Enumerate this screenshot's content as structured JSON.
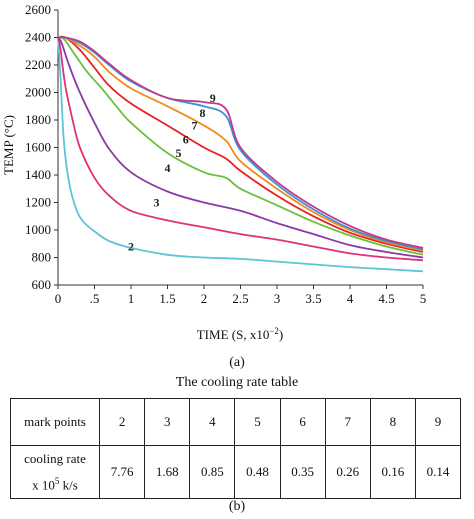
{
  "chart_data": {
    "type": "line",
    "ylabel": "TEMP (°C)",
    "xlabel": "TIME  (S, x10",
    "xlabel_exp": "−2",
    "xlabel_close": ")",
    "xlim": [
      0,
      5
    ],
    "ylim": [
      600,
      2600
    ],
    "x_ticks": [
      "0",
      ".5",
      "1",
      "1.5",
      "2",
      "2.5",
      "3",
      "3.5",
      "4",
      "4.5",
      "5"
    ],
    "x_tick_values": [
      0,
      0.5,
      1,
      1.5,
      2,
      2.5,
      3,
      3.5,
      4,
      4.5,
      5
    ],
    "y_ticks": [
      600,
      800,
      1000,
      1200,
      1400,
      1600,
      1800,
      2000,
      2200,
      2400,
      2600
    ],
    "grid": false,
    "series": [
      {
        "name": "2",
        "color": "#5bc4d6",
        "label_at": [
          1.0,
          880
        ],
        "points": [
          [
            0,
            2400
          ],
          [
            0.03,
            2150
          ],
          [
            0.08,
            1650
          ],
          [
            0.15,
            1350
          ],
          [
            0.25,
            1150
          ],
          [
            0.35,
            1060
          ],
          [
            0.5,
            990
          ],
          [
            0.7,
            920
          ],
          [
            1.0,
            870
          ],
          [
            1.5,
            820
          ],
          [
            2.0,
            800
          ],
          [
            2.5,
            790
          ],
          [
            3.0,
            770
          ],
          [
            3.5,
            750
          ],
          [
            4.0,
            730
          ],
          [
            4.5,
            715
          ],
          [
            5.0,
            700
          ]
        ]
      },
      {
        "name": "3",
        "color": "#e0307a",
        "label_at": [
          1.35,
          1200
        ],
        "points": [
          [
            0,
            2400
          ],
          [
            0.03,
            2330
          ],
          [
            0.1,
            2050
          ],
          [
            0.2,
            1800
          ],
          [
            0.3,
            1600
          ],
          [
            0.5,
            1380
          ],
          [
            0.7,
            1250
          ],
          [
            1.0,
            1140
          ],
          [
            1.5,
            1070
          ],
          [
            2.0,
            1020
          ],
          [
            2.5,
            970
          ],
          [
            3.0,
            930
          ],
          [
            3.5,
            880
          ],
          [
            4.0,
            830
          ],
          [
            4.5,
            800
          ],
          [
            5.0,
            780
          ]
        ]
      },
      {
        "name": "4",
        "color": "#8a3aa8",
        "label_at": [
          1.5,
          1450
        ],
        "points": [
          [
            0,
            2400
          ],
          [
            0.05,
            2360
          ],
          [
            0.15,
            2200
          ],
          [
            0.3,
            2000
          ],
          [
            0.5,
            1780
          ],
          [
            0.7,
            1590
          ],
          [
            1.0,
            1420
          ],
          [
            1.5,
            1280
          ],
          [
            2.0,
            1200
          ],
          [
            2.5,
            1140
          ],
          [
            3.0,
            1050
          ],
          [
            3.5,
            970
          ],
          [
            4.0,
            890
          ],
          [
            4.5,
            840
          ],
          [
            5.0,
            800
          ]
        ]
      },
      {
        "name": "5",
        "color": "#6cbf3a",
        "label_at": [
          1.65,
          1560
        ],
        "points": [
          [
            0,
            2400
          ],
          [
            0.08,
            2390
          ],
          [
            0.2,
            2300
          ],
          [
            0.4,
            2150
          ],
          [
            0.6,
            2030
          ],
          [
            0.8,
            1900
          ],
          [
            1.0,
            1780
          ],
          [
            1.5,
            1560
          ],
          [
            2.0,
            1420
          ],
          [
            2.3,
            1380
          ],
          [
            2.5,
            1300
          ],
          [
            3.0,
            1180
          ],
          [
            3.5,
            1060
          ],
          [
            4.0,
            960
          ],
          [
            4.5,
            880
          ],
          [
            5.0,
            820
          ]
        ]
      },
      {
        "name": "6",
        "color": "#e82020",
        "label_at": [
          1.75,
          1660
        ],
        "points": [
          [
            0,
            2400
          ],
          [
            0.1,
            2400
          ],
          [
            0.3,
            2310
          ],
          [
            0.5,
            2180
          ],
          [
            0.7,
            2050
          ],
          [
            1.0,
            1920
          ],
          [
            1.5,
            1760
          ],
          [
            2.0,
            1600
          ],
          [
            2.3,
            1520
          ],
          [
            2.5,
            1430
          ],
          [
            3.0,
            1250
          ],
          [
            3.5,
            1100
          ],
          [
            4.0,
            980
          ],
          [
            4.5,
            900
          ],
          [
            5.0,
            840
          ]
        ]
      },
      {
        "name": "7",
        "color": "#f08a1e",
        "label_at": [
          1.87,
          1760
        ],
        "points": [
          [
            0,
            2400
          ],
          [
            0.1,
            2400
          ],
          [
            0.3,
            2340
          ],
          [
            0.5,
            2260
          ],
          [
            0.7,
            2150
          ],
          [
            1.0,
            2030
          ],
          [
            1.5,
            1900
          ],
          [
            2.0,
            1760
          ],
          [
            2.3,
            1650
          ],
          [
            2.5,
            1500
          ],
          [
            3.0,
            1300
          ],
          [
            3.5,
            1130
          ],
          [
            4.0,
            1000
          ],
          [
            4.5,
            910
          ],
          [
            5.0,
            850
          ]
        ]
      },
      {
        "name": "8",
        "color": "#3a92d8",
        "label_at": [
          1.98,
          1850
        ],
        "points": [
          [
            0,
            2400
          ],
          [
            0.1,
            2400
          ],
          [
            0.3,
            2360
          ],
          [
            0.5,
            2290
          ],
          [
            0.7,
            2200
          ],
          [
            1.0,
            2080
          ],
          [
            1.5,
            1960
          ],
          [
            2.0,
            1900
          ],
          [
            2.3,
            1830
          ],
          [
            2.5,
            1580
          ],
          [
            3.0,
            1330
          ],
          [
            3.5,
            1150
          ],
          [
            4.0,
            1010
          ],
          [
            4.5,
            920
          ],
          [
            5.0,
            860
          ]
        ]
      },
      {
        "name": "9",
        "color": "#c23a8e",
        "label_at": [
          2.12,
          1960
        ],
        "points": [
          [
            0,
            2400
          ],
          [
            0.1,
            2400
          ],
          [
            0.3,
            2370
          ],
          [
            0.5,
            2300
          ],
          [
            0.7,
            2210
          ],
          [
            1.0,
            2090
          ],
          [
            1.5,
            1960
          ],
          [
            2.0,
            1930
          ],
          [
            2.3,
            1880
          ],
          [
            2.5,
            1600
          ],
          [
            3.0,
            1350
          ],
          [
            3.5,
            1170
          ],
          [
            4.0,
            1030
          ],
          [
            4.5,
            930
          ],
          [
            5.0,
            870
          ]
        ]
      }
    ]
  },
  "captions": {
    "a": "(a)",
    "b": "(b)"
  },
  "table": {
    "title": "The cooling rate table",
    "header_label": "mark points",
    "marks": [
      "2",
      "3",
      "4",
      "5",
      "6",
      "7",
      "8",
      "9"
    ],
    "row_label_line1": "cooling rate",
    "row_label_line2_pre": "x 10",
    "row_label_line2_exp": "5",
    "row_label_line2_post": " k/s",
    "rates": [
      "7.76",
      "1.68",
      "0.85",
      "0.48",
      "0.35",
      "0.26",
      "0.16",
      "0.14"
    ]
  }
}
